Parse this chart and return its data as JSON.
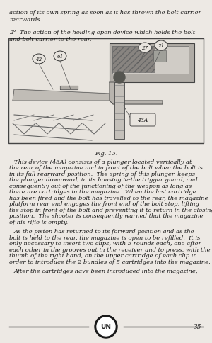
{
  "background_color": "#ede9e4",
  "page_width": 3.0,
  "page_height": 4.85,
  "dpi": 100,
  "top_text_lines": [
    "action of its own spring as soon as it has thrown the bolt carrier",
    "rearwards."
  ],
  "second_para_indent": "    ",
  "second_para_lines": [
    "2°  The action of the holding open device which holds the bolt",
    "and bolt carrier to the rear."
  ],
  "fig_caption": "Fig. 13.",
  "body_para1_indent": "        ",
  "body_para1": "This device (43A) consists of a plunger located vertically at\nthe rear of the magazine and in front of the bolt when the bolt is\nin its full rearward position.  The spring of this plunger, keeps\nthe plunger downward, in its housing ie-the trigger guard, and\nconsequently out of the functioning of the weapon as long as\nthere are cartridges in the magazine.  When the last cartridge\nhas been fired and the bolt has travelled to the rear, the magazine\nplatform rear end engages the front end of the bolt stop, lifting\nthe stop in front of the bolt and preventing it to return in the closing\nposition.  The shooter is consequently warned that the magazine\nof his rifle is empty.",
  "body_para2_indent": "        ",
  "body_para2": "As the piston has returned to its forward position and as the\nbolt is held to the rear, the magazine is open to be refilled.  It is\nonly necessary to insert two clips, with 5 rounds each, one after\neach other in the grooves out in the receiver and to press, with the\nthumb of the right hand, on the upper cartridge of each clip in\norder to introduce the 2 bundles of 5 cartridges into the magazine.",
  "body_para3_indent": "    ",
  "body_para3": "After the cartridges have been introduced into the magazine,",
  "page_number": "35",
  "text_color": "#1a1a1a",
  "line_color": "#1a1a1a",
  "diagram_bg": "#ddd9d4",
  "diagram_border": "#444444"
}
